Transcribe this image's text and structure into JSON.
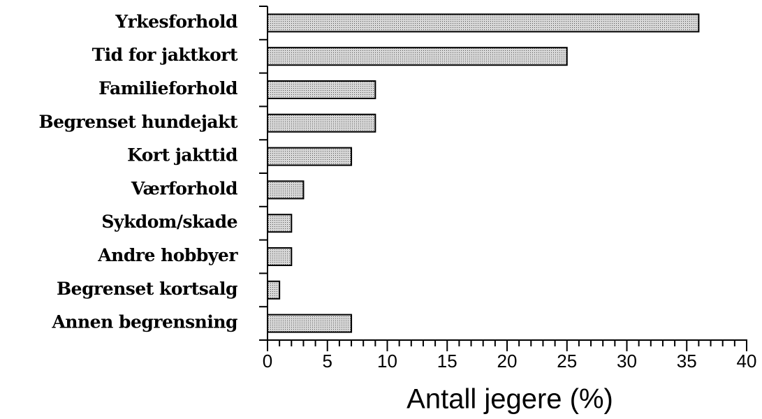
{
  "chart_data": {
    "type": "hbar",
    "x_label": "Antall jegere (%)",
    "categories": [
      "Yrkesforhold",
      "Tid for jaktkort",
      "Familieforhold",
      "Begrenset hundejakt",
      "Kort jakttid",
      "Værforhold",
      "Sykdom/skade",
      "Andre hobbyer",
      "Begrenset kortsalg",
      "Annen begrensning"
    ],
    "values": [
      36,
      25,
      9,
      9,
      7,
      3,
      2,
      2,
      1,
      7
    ],
    "color": "#c4c4c4",
    "xlim": [
      0,
      40
    ],
    "xticks": [
      0,
      5,
      10,
      15,
      20,
      25,
      30,
      35,
      40
    ],
    "grid": false
  }
}
